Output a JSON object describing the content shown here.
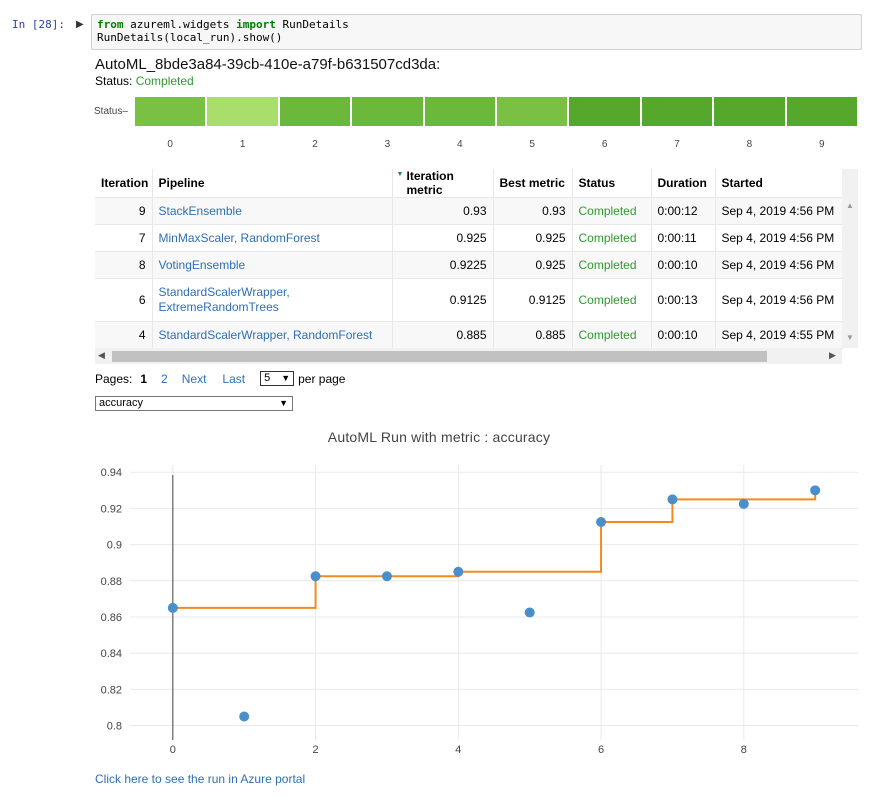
{
  "cell": {
    "prompt": "In [28]:",
    "code_line1": {
      "kw1": "from",
      "mod": " azureml.widgets ",
      "kw2": "import",
      "name": " RunDetails"
    },
    "code_line2": "RunDetails(local_run).show()"
  },
  "run": {
    "title": "AutoML_8bde3a84-39cb-410e-a79f-b631507cd3da:",
    "status_label": "Status:",
    "status_value": "Completed"
  },
  "status_bar": {
    "label": "Status",
    "segments": [
      "#7ac143",
      "#a9de6d",
      "#6cb83a",
      "#6cb83a",
      "#6cb83a",
      "#7ac143",
      "#55a82c",
      "#55a82c",
      "#55a82c",
      "#55a82c"
    ],
    "ticks": [
      "0",
      "1",
      "2",
      "3",
      "4",
      "5",
      "6",
      "7",
      "8",
      "9"
    ]
  },
  "table": {
    "headers": [
      "Iteration",
      "Pipeline",
      "Iteration metric",
      "Best metric",
      "Status",
      "Duration",
      "Started"
    ],
    "rows": [
      {
        "iteration": "9",
        "pipeline": "StackEnsemble",
        "pipeline2": "",
        "iter_metric": "0.93",
        "best_metric": "0.93",
        "status": "Completed",
        "duration": "0:00:12",
        "started": "Sep 4, 2019 4:56 PM"
      },
      {
        "iteration": "7",
        "pipeline": "MinMaxScaler, RandomForest",
        "pipeline2": "",
        "iter_metric": "0.925",
        "best_metric": "0.925",
        "status": "Completed",
        "duration": "0:00:11",
        "started": "Sep 4, 2019 4:56 PM"
      },
      {
        "iteration": "8",
        "pipeline": "VotingEnsemble",
        "pipeline2": "",
        "iter_metric": "0.9225",
        "best_metric": "0.925",
        "status": "Completed",
        "duration": "0:00:10",
        "started": "Sep 4, 2019 4:56 PM"
      },
      {
        "iteration": "6",
        "pipeline": "StandardScalerWrapper,",
        "pipeline2": "ExtremeRandomTrees",
        "iter_metric": "0.9125",
        "best_metric": "0.9125",
        "status": "Completed",
        "duration": "0:00:13",
        "started": "Sep 4, 2019 4:56 PM"
      },
      {
        "iteration": "4",
        "pipeline": "StandardScalerWrapper, RandomForest",
        "pipeline2": "",
        "iter_metric": "0.885",
        "best_metric": "0.885",
        "status": "Completed",
        "duration": "0:00:10",
        "started": "Sep 4, 2019 4:55 PM"
      }
    ]
  },
  "pager": {
    "label": "Pages:",
    "current": "1",
    "page2": "2",
    "next": "Next",
    "last": "Last",
    "per_page_value": "5",
    "per_page_label": "per page"
  },
  "metric_select": {
    "value": "accuracy"
  },
  "chart_data": {
    "type": "scatter",
    "title": "AutoML Run with metric : accuracy",
    "xlabel": "",
    "ylabel": "",
    "xlim": [
      -0.6,
      9.6
    ],
    "ylim": [
      0.792,
      0.944
    ],
    "x_ticks": [
      0,
      2,
      4,
      6,
      8
    ],
    "y_ticks": [
      0.8,
      0.82,
      0.84,
      0.86,
      0.88,
      0.9,
      0.92,
      0.94
    ],
    "y_tick_labels": [
      "0.8",
      "0.82",
      "0.84",
      "0.86",
      "0.88",
      "0.9",
      "0.92",
      "0.94"
    ],
    "grid": true,
    "point_color": "#4a8fc9",
    "line_color": "#f28a1e",
    "points": {
      "x": [
        0,
        1,
        2,
        3,
        4,
        5,
        6,
        7,
        8,
        9
      ],
      "y": [
        0.865,
        0.805,
        0.8825,
        0.8825,
        0.885,
        0.8625,
        0.9125,
        0.925,
        0.9225,
        0.93
      ]
    },
    "best_line": {
      "x": [
        0,
        1,
        2,
        3,
        4,
        5,
        6,
        7,
        8,
        9
      ],
      "y": [
        0.865,
        0.865,
        0.8825,
        0.8825,
        0.885,
        0.885,
        0.9125,
        0.925,
        0.925,
        0.93
      ]
    }
  },
  "portal_link": "Click here to see the run in Azure portal"
}
